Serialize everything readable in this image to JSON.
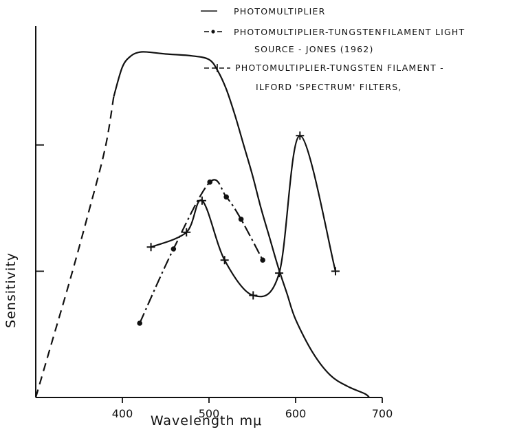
{
  "chart_data": {
    "type": "line",
    "title": "",
    "xlabel": "Wavelength  mμ",
    "ylabel": "Sensitivity",
    "xlim": [
      300,
      700
    ],
    "ylim": [
      0,
      100
    ],
    "x_ticks": [
      "400",
      "500",
      "600",
      "700"
    ],
    "y_ticks": [
      34,
      68
    ],
    "grid": false,
    "legend_position": "top-right",
    "series": [
      {
        "name": "PHOTOMULTIPLIER",
        "style": "solid",
        "marker": "none",
        "color": "#111111",
        "dashed_until_x": 383,
        "x": [
          300,
          320,
          340,
          360,
          380,
          390,
          400,
          410,
          420,
          430,
          450,
          480,
          500,
          510,
          520,
          530,
          540,
          550,
          560,
          570,
          580,
          590,
          600,
          620,
          640,
          660,
          680,
          685
        ],
        "y": [
          0,
          16,
          32,
          49,
          67,
          81,
          89,
          92,
          93,
          93,
          92.5,
          92,
          91,
          88,
          83,
          76,
          68,
          60,
          51,
          43,
          35,
          28,
          21,
          12,
          6,
          3,
          1,
          0
        ]
      },
      {
        "name": "PHOTOMULTIPLIER-TUNGSTENFILAMENT LIGHT SOURCE - JONES (1962)",
        "style": "dash-dot",
        "marker": "dot",
        "color": "#111111",
        "x": [
          420,
          459,
          501,
          520,
          537,
          562
        ],
        "y": [
          20,
          40,
          58,
          54,
          48,
          37
        ]
      },
      {
        "name": "PHOTOMULTIPLIER-TUNGSTEN FILAMENT - ILFORD 'SPECTRUM' FILTERS,",
        "style": "solid",
        "marker": "plus",
        "color": "#111111",
        "x": [
          433,
          474,
          492,
          518,
          551,
          581,
          605,
          646
        ],
        "y": [
          40.5,
          44.5,
          53,
          37,
          27.5,
          33.5,
          70.5,
          34
        ]
      }
    ]
  }
}
